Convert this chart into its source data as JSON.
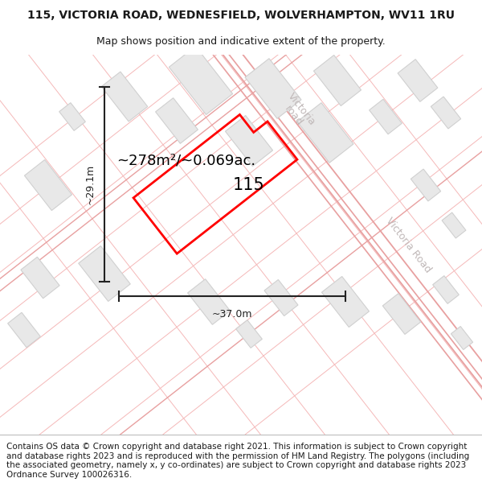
{
  "title": "115, VICTORIA ROAD, WEDNESFIELD, WOLVERHAMPTON, WV11 1RU",
  "subtitle": "Map shows position and indicative extent of the property.",
  "footer": "Contains OS data © Crown copyright and database right 2021. This information is subject to Crown copyright and database rights 2023 and is reproduced with the permission of HM Land Registry. The polygons (including the associated geometry, namely x, y co-ordinates) are subject to Crown copyright and database rights 2023 Ordnance Survey 100026316.",
  "area_label": "~278m²/~0.069ac.",
  "property_label": "115",
  "width_label": "~37.0m",
  "height_label": "~29.1m",
  "map_bg": "#ffffff",
  "road_line_color": "#f5b8b8",
  "road_line_color2": "#e8a0a0",
  "building_fill": "#e8e8e8",
  "building_edge": "#d0d0d0",
  "property_color": "#ff0000",
  "text_color": "#1a1a1a",
  "road_label_color": "#c0b8b8",
  "title_fontsize": 10,
  "subtitle_fontsize": 9,
  "footer_fontsize": 7.5,
  "dim_line_color": "#222222"
}
